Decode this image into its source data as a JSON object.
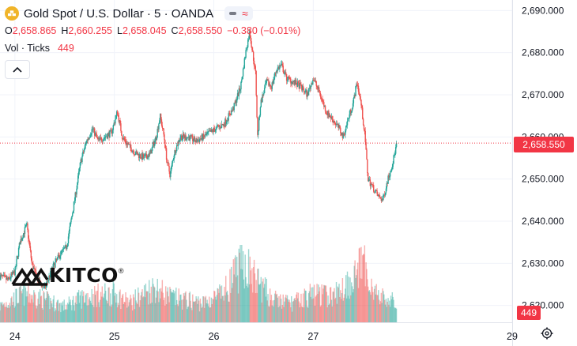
{
  "header": {
    "symbol_title": "Gold Spot / U.S. Dollar · 5 · OANDA",
    "open_label": "O",
    "open": "2,658.865",
    "high_label": "H",
    "high": "2,660.255",
    "low_label": "L",
    "low": "2,658.045",
    "close_label": "C",
    "close": "2,658.550",
    "change": "−0.380 (−0.01%)"
  },
  "volume_legend": {
    "label": "Vol · Ticks",
    "value": "449"
  },
  "last_price_label": "2,658.550",
  "volume_badge": "449",
  "watermark": {
    "text": "KITCO",
    "reg_mark": "®"
  },
  "icons": {
    "symbol_logo": "gold-bars-icon",
    "collapse": "chevron-up-icon",
    "settings": "gear-icon",
    "status_dash": "dash-icon",
    "status_wave": "wave-icon"
  },
  "colors": {
    "up": "#26a69a",
    "down": "#ef5350",
    "price_line": "#f23645",
    "grid": "#f0f3fa",
    "text": "#131722"
  },
  "chart_data": {
    "type": "candlestick",
    "title": "Gold Spot / U.S. Dollar · 5 · OANDA",
    "x_tick_labels": [
      {
        "label": "24",
        "day": 24
      },
      {
        "label": "25",
        "day": 25
      },
      {
        "label": "26",
        "day": 26
      },
      {
        "label": "27",
        "day": 27
      },
      {
        "label": "29",
        "day": 29
      }
    ],
    "x_range_days": [
      23.85,
      29.0
    ],
    "y_ticks": [
      "2,690.000",
      "2,680.000",
      "2,670.000",
      "2,660.000",
      "2,650.000",
      "2,640.000",
      "2,630.000",
      "2,620.000"
    ],
    "y_tick_values": [
      2690,
      2680,
      2670,
      2660,
      2650,
      2640,
      2630,
      2620
    ],
    "y_range": [
      2616.0,
      2692.5
    ],
    "last_price": 2658.55,
    "price_path": [
      [
        23.85,
        2627
      ],
      [
        23.93,
        2626
      ],
      [
        24.0,
        2628
      ],
      [
        24.05,
        2635
      ],
      [
        24.1,
        2638
      ],
      [
        24.12,
        2639
      ],
      [
        24.17,
        2630
      ],
      [
        24.23,
        2626
      ],
      [
        24.3,
        2624
      ],
      [
        24.38,
        2629
      ],
      [
        24.45,
        2632
      ],
      [
        24.52,
        2634
      ],
      [
        24.6,
        2645
      ],
      [
        24.66,
        2654
      ],
      [
        24.72,
        2659
      ],
      [
        24.78,
        2662
      ],
      [
        24.84,
        2659
      ],
      [
        24.9,
        2660
      ],
      [
        24.97,
        2661
      ],
      [
        25.03,
        2666
      ],
      [
        25.08,
        2660
      ],
      [
        25.14,
        2658
      ],
      [
        25.22,
        2656
      ],
      [
        25.3,
        2655
      ],
      [
        25.36,
        2656
      ],
      [
        25.42,
        2660
      ],
      [
        25.46,
        2665
      ],
      [
        25.5,
        2660
      ],
      [
        25.53,
        2654
      ],
      [
        25.56,
        2651
      ],
      [
        25.6,
        2656
      ],
      [
        25.66,
        2660
      ],
      [
        25.74,
        2660
      ],
      [
        25.82,
        2659
      ],
      [
        25.9,
        2660
      ],
      [
        25.96,
        2661
      ],
      [
        26.02,
        2662
      ],
      [
        26.1,
        2663
      ],
      [
        26.2,
        2667
      ],
      [
        26.27,
        2672
      ],
      [
        26.32,
        2680
      ],
      [
        26.36,
        2685
      ],
      [
        26.42,
        2675
      ],
      [
        26.44,
        2660
      ],
      [
        26.47,
        2668
      ],
      [
        26.53,
        2673
      ],
      [
        26.58,
        2672
      ],
      [
        26.63,
        2676
      ],
      [
        26.68,
        2677
      ],
      [
        26.73,
        2674
      ],
      [
        26.8,
        2673
      ],
      [
        26.87,
        2672
      ],
      [
        26.94,
        2670
      ],
      [
        27.0,
        2674
      ],
      [
        27.07,
        2670
      ],
      [
        27.13,
        2666
      ],
      [
        27.2,
        2664
      ],
      [
        27.26,
        2662
      ],
      [
        27.3,
        2660
      ],
      [
        27.36,
        2665
      ],
      [
        27.4,
        2668
      ],
      [
        27.44,
        2673
      ],
      [
        27.48,
        2668
      ],
      [
        27.52,
        2660
      ],
      [
        27.55,
        2650
      ],
      [
        27.6,
        2648
      ],
      [
        27.65,
        2646
      ],
      [
        27.7,
        2645
      ],
      [
        27.75,
        2650
      ],
      [
        27.8,
        2654
      ],
      [
        27.84,
        2658.55
      ]
    ],
    "volume_profile": [
      [
        23.85,
        0.25
      ],
      [
        24.1,
        0.45
      ],
      [
        24.3,
        0.35
      ],
      [
        24.5,
        0.25
      ],
      [
        24.7,
        0.4
      ],
      [
        25.0,
        0.45
      ],
      [
        25.15,
        0.3
      ],
      [
        25.4,
        0.55
      ],
      [
        25.55,
        0.4
      ],
      [
        25.7,
        0.35
      ],
      [
        25.9,
        0.3
      ],
      [
        26.1,
        0.45
      ],
      [
        26.3,
        0.95
      ],
      [
        26.4,
        0.7
      ],
      [
        26.6,
        0.35
      ],
      [
        26.8,
        0.3
      ],
      [
        27.0,
        0.45
      ],
      [
        27.2,
        0.4
      ],
      [
        27.4,
        0.7
      ],
      [
        27.5,
        0.9
      ],
      [
        27.65,
        0.4
      ],
      [
        27.84,
        0.3
      ]
    ]
  }
}
